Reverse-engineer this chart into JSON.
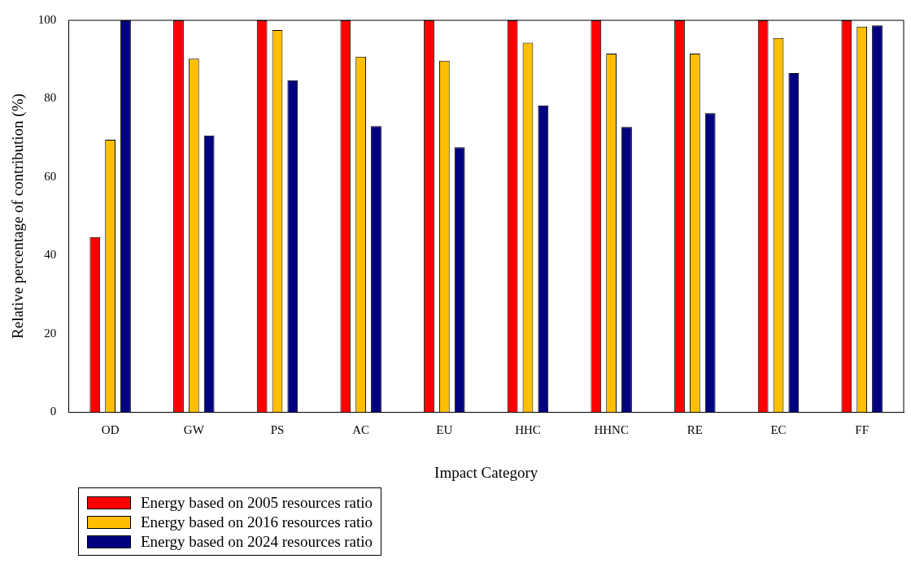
{
  "chart_data": {
    "type": "bar",
    "xlabel": "Impact Category",
    "ylabel": "Relative percentage of contribution (%)",
    "categories": [
      "OD",
      "GW",
      "PS",
      "AC",
      "EU",
      "HHC",
      "HHNC",
      "RE",
      "EC",
      "FF"
    ],
    "series": [
      {
        "name": "Energy based on 2005 resources ratio",
        "color": "#ff0000",
        "values": [
          44.7,
          100,
          100,
          100,
          100,
          100,
          100,
          100,
          100,
          100
        ]
      },
      {
        "name": "Energy based on 2016 resources ratio",
        "color": "#ffbf00",
        "values": [
          69.5,
          90.2,
          97.5,
          90.7,
          89.7,
          94.3,
          91.5,
          91.5,
          95.5,
          98.4
        ]
      },
      {
        "name": "Energy based on 2024 resources ratio",
        "color": "#000080",
        "values": [
          100,
          70.6,
          84.7,
          73,
          67.6,
          78.3,
          72.8,
          76.3,
          86.5,
          98.7
        ]
      }
    ],
    "ylim": [
      0,
      100
    ],
    "yticks": [
      0,
      20,
      40,
      60,
      80,
      100
    ],
    "grid": false,
    "legend": "bottom"
  }
}
